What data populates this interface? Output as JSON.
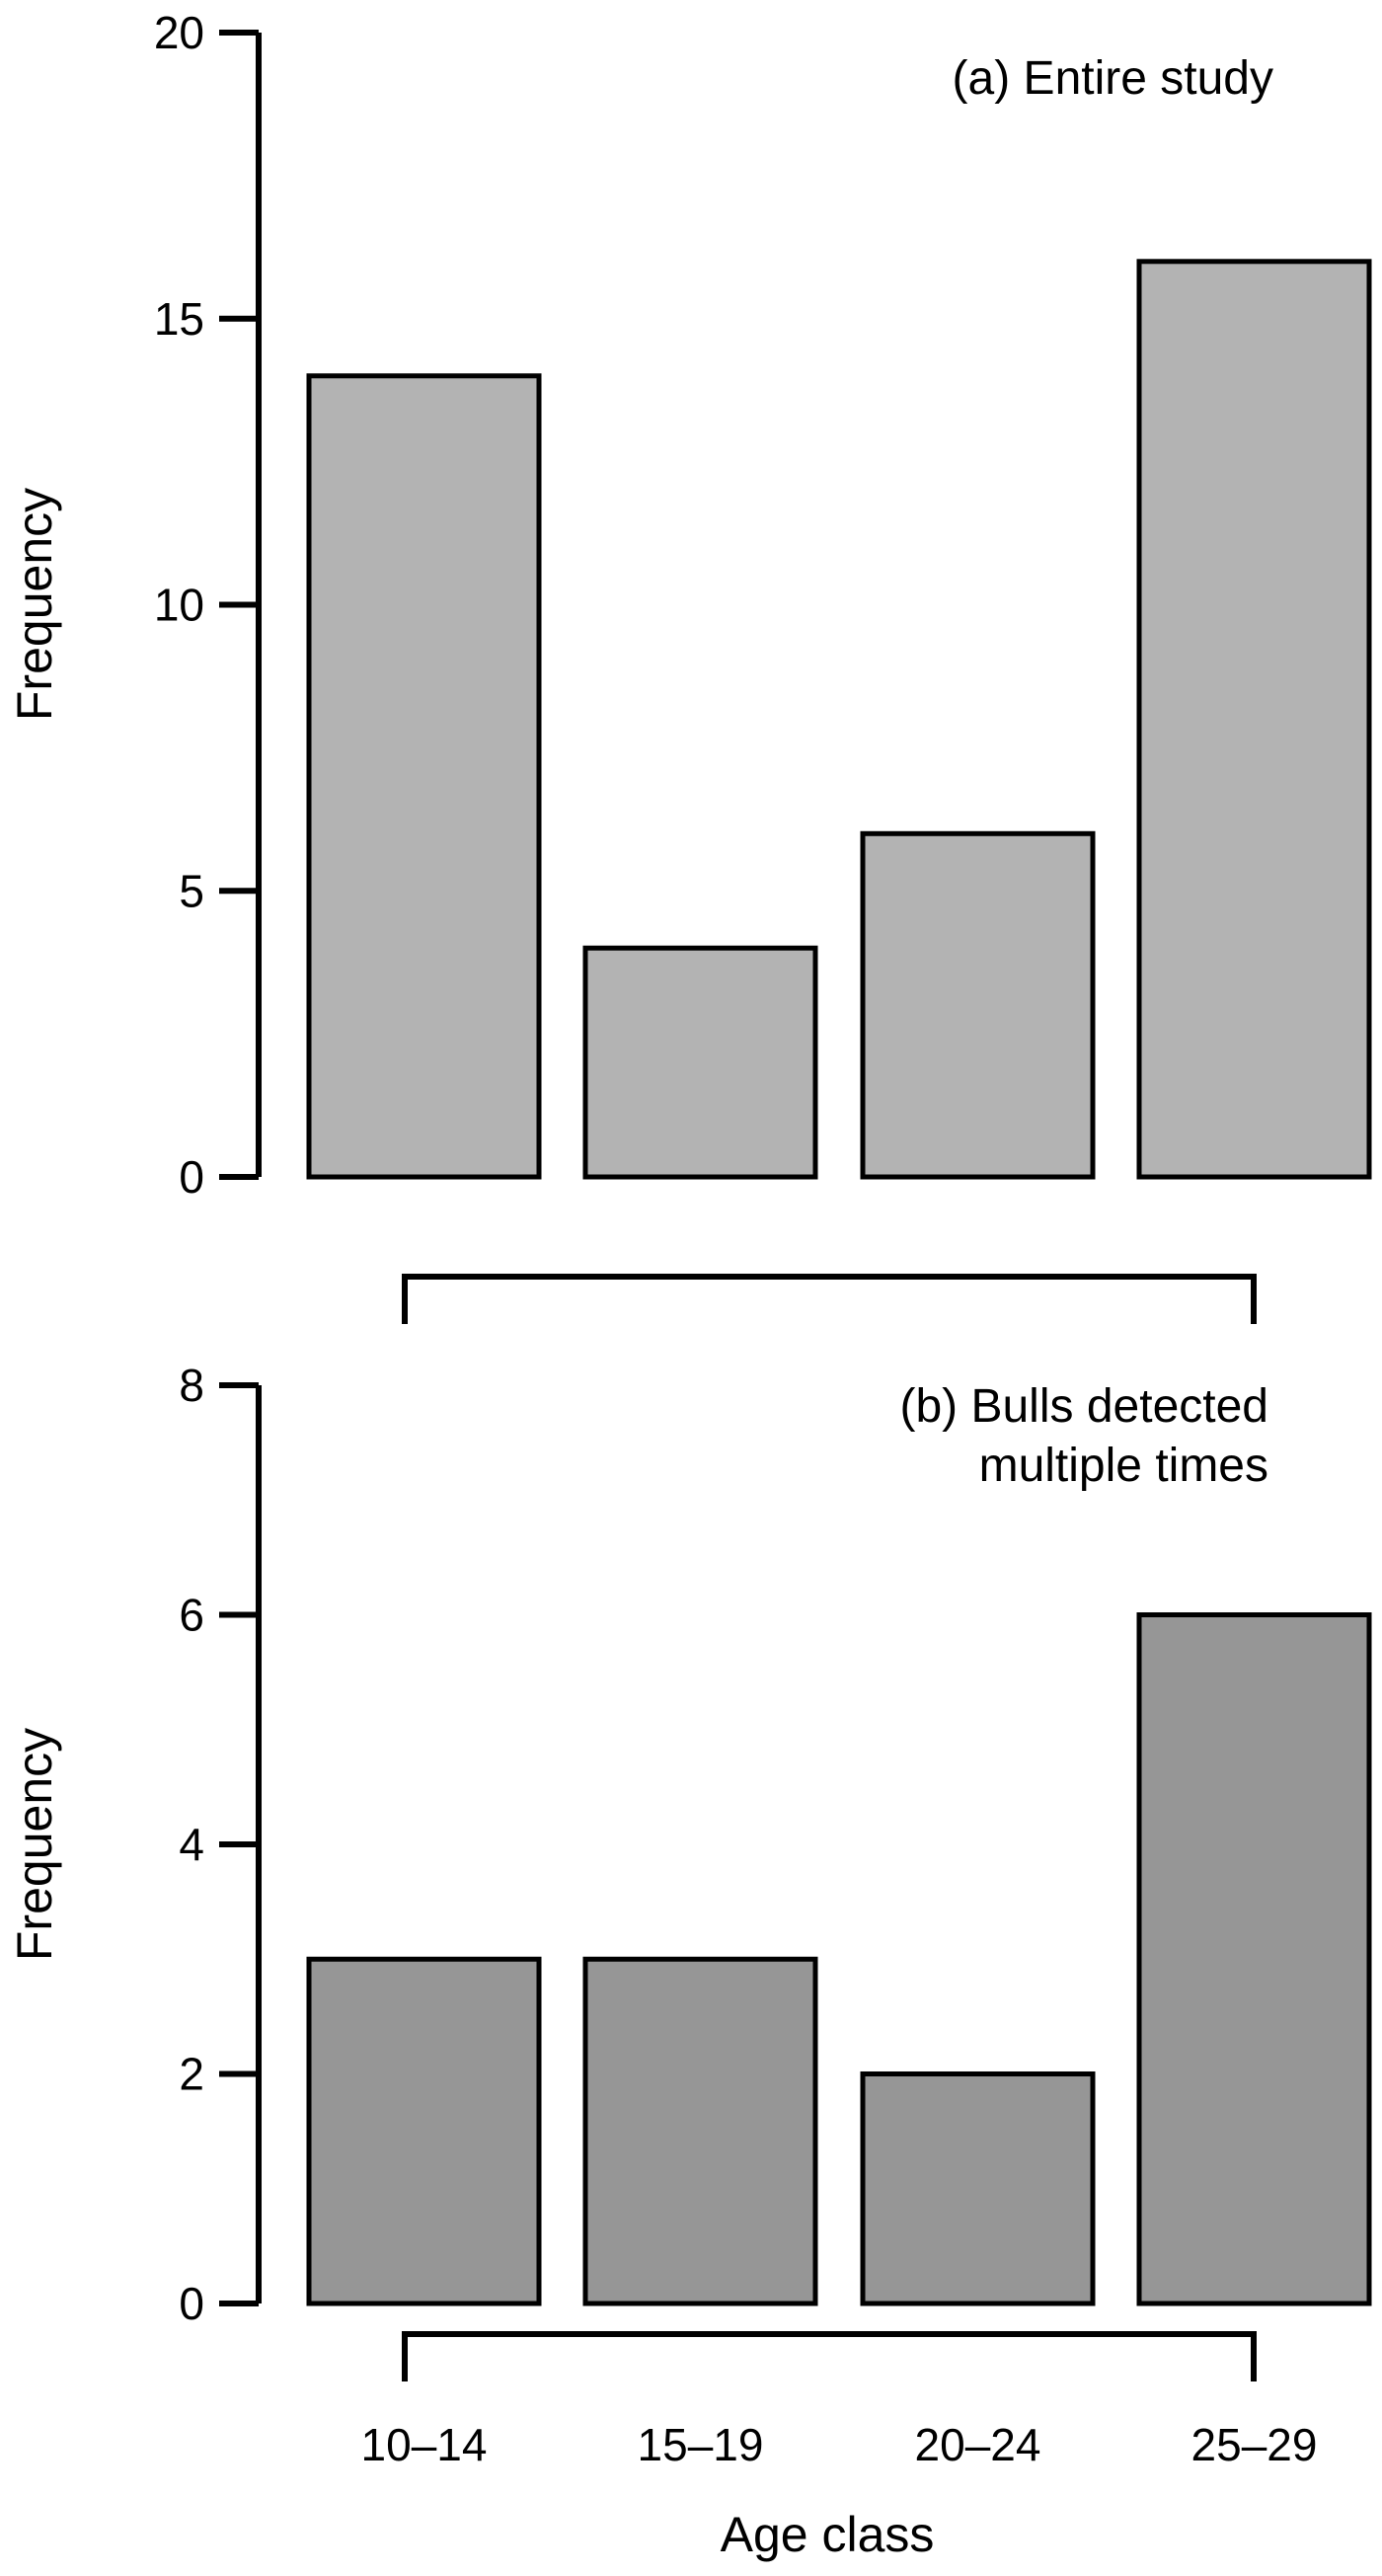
{
  "chart_data": [
    {
      "type": "bar",
      "title_lines": [
        "(a) Entire study"
      ],
      "ylabel": "Frequency",
      "xlabel": "",
      "categories": [
        "10–14",
        "15–19",
        "20–24",
        "25–29"
      ],
      "values": [
        14,
        4,
        6,
        16
      ],
      "ylim": [
        0,
        20
      ],
      "yticks": [
        0,
        5,
        10,
        15,
        20
      ],
      "show_category_labels": false,
      "bar_color": "#b3b3b3",
      "grid": false,
      "legend": "none"
    },
    {
      "type": "bar",
      "title_lines": [
        "(b) Bulls detected",
        "multiple times"
      ],
      "ylabel": "Frequency",
      "xlabel": "Age class",
      "categories": [
        "10–14",
        "15–19",
        "20–24",
        "25–29"
      ],
      "values": [
        3,
        3,
        2,
        6
      ],
      "ylim": [
        0,
        8
      ],
      "yticks": [
        0,
        2,
        4,
        6,
        8
      ],
      "show_category_labels": true,
      "bar_color": "#969696",
      "grid": false,
      "legend": "none"
    }
  ]
}
